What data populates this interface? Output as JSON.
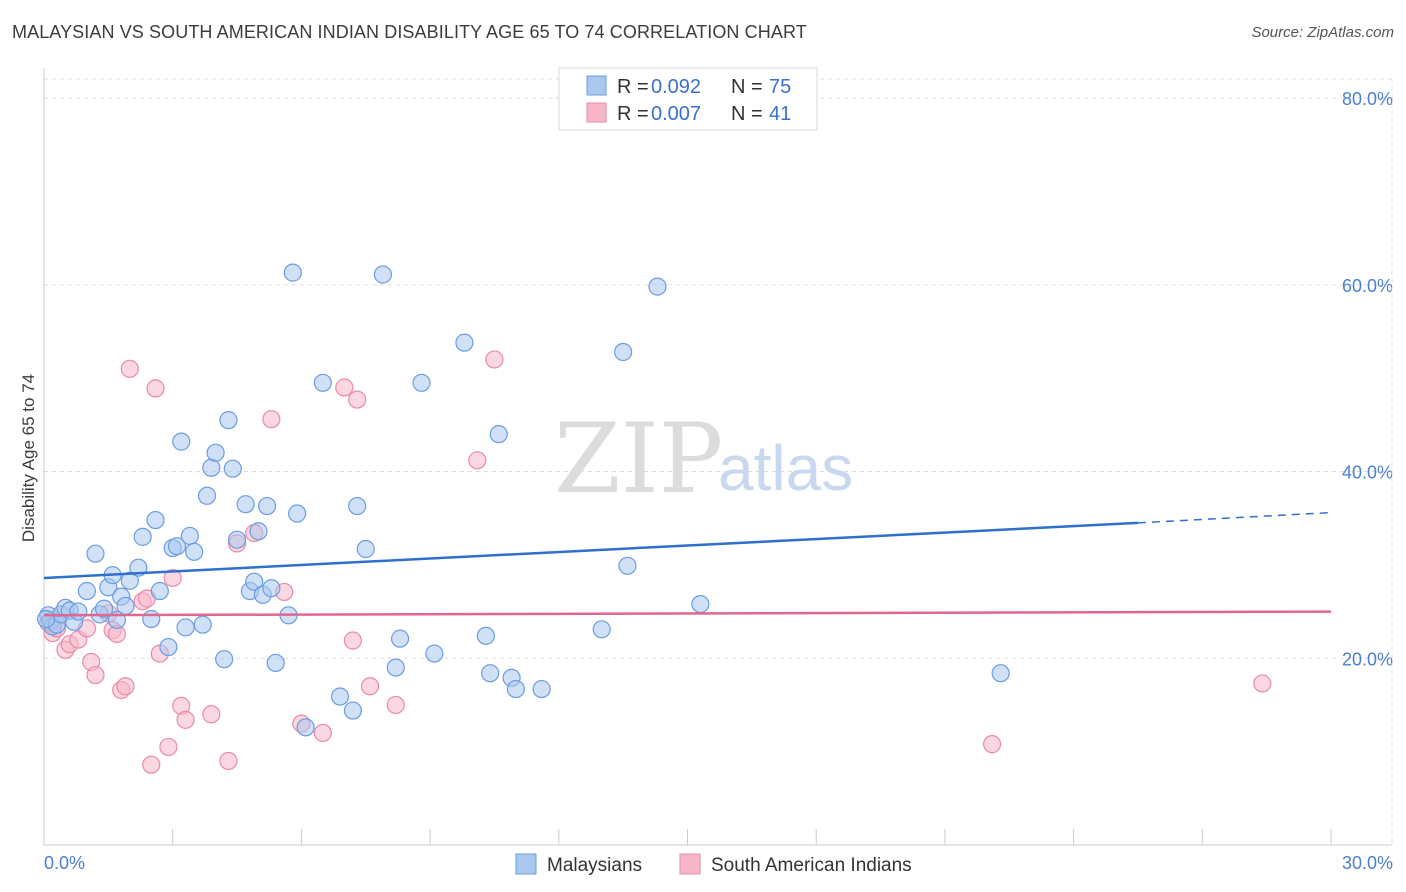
{
  "header": {
    "title": "MALAYSIAN VS SOUTH AMERICAN INDIAN DISABILITY AGE 65 TO 74 CORRELATION CHART",
    "source": "Source: ZipAtlas.com"
  },
  "watermark": {
    "zip": "ZIP",
    "atlas": "atlas"
  },
  "colors": {
    "blue_fill": "#a9c7ef",
    "blue_stroke": "#6a9de0",
    "blue_line": "#2f6fcd",
    "pink_fill": "#f7b6c8",
    "pink_stroke": "#ea8aa8",
    "pink_line": "#e0678f",
    "grid": "#dddddd",
    "axis_tick": "#4a7fd1"
  },
  "legend": {
    "rows": [
      {
        "r_label": "R =",
        "r_value": "0.092",
        "n_label": "N =",
        "n_value": "75"
      },
      {
        "r_label": "R =",
        "r_value": "0.007",
        "n_label": "N =",
        "n_value": "41"
      }
    ]
  },
  "chart_data": {
    "type": "scatter",
    "title": "MALAYSIAN VS SOUTH AMERICAN INDIAN DISABILITY AGE 65 TO 74 CORRELATION CHART",
    "xlabel": "",
    "ylabel": "Disability Age 65 to 74",
    "xlim": [
      0,
      30
    ],
    "ylim": [
      0,
      80
    ],
    "x_tick_labels": [
      "0.0%",
      "30.0%"
    ],
    "y_ticks": [
      20,
      40,
      60,
      80
    ],
    "y_tick_labels": [
      "20.0%",
      "40.0%",
      "60.0%",
      "80.0%"
    ],
    "grid": true,
    "series": [
      {
        "name": "Malaysians",
        "color": "#a9c7ef",
        "trend": {
          "x0": 0,
          "y0": 28.6,
          "x1": 25.5,
          "y1": 34.5,
          "dash_to_x": 30,
          "dash_to_y": 35.6
        },
        "points": [
          [
            0.1,
            24.6
          ],
          [
            0.15,
            24.0
          ],
          [
            0.2,
            23.4
          ],
          [
            0.3,
            23.6
          ],
          [
            0.4,
            24.7
          ],
          [
            0.5,
            25.4
          ],
          [
            0.6,
            25.1
          ],
          [
            0.7,
            23.9
          ],
          [
            0.8,
            25.0
          ],
          [
            1.0,
            27.2
          ],
          [
            1.2,
            31.2
          ],
          [
            1.3,
            24.7
          ],
          [
            1.4,
            25.3
          ],
          [
            1.5,
            27.6
          ],
          [
            1.6,
            28.9
          ],
          [
            1.7,
            24.1
          ],
          [
            1.8,
            26.6
          ],
          [
            1.9,
            25.6
          ],
          [
            2.0,
            28.3
          ],
          [
            2.2,
            29.7
          ],
          [
            2.3,
            33.0
          ],
          [
            2.5,
            24.2
          ],
          [
            2.6,
            34.8
          ],
          [
            2.7,
            27.2
          ],
          [
            2.9,
            21.2
          ],
          [
            3.0,
            31.8
          ],
          [
            3.1,
            32.0
          ],
          [
            3.2,
            43.2
          ],
          [
            3.3,
            23.3
          ],
          [
            3.4,
            33.1
          ],
          [
            3.5,
            31.4
          ],
          [
            3.7,
            23.6
          ],
          [
            3.8,
            37.4
          ],
          [
            3.9,
            40.4
          ],
          [
            4.0,
            42.0
          ],
          [
            4.2,
            19.9
          ],
          [
            4.3,
            45.5
          ],
          [
            4.4,
            40.3
          ],
          [
            4.5,
            32.7
          ],
          [
            4.7,
            36.5
          ],
          [
            4.8,
            27.2
          ],
          [
            4.9,
            28.2
          ],
          [
            5.0,
            33.6
          ],
          [
            5.1,
            26.8
          ],
          [
            5.2,
            36.3
          ],
          [
            5.3,
            27.5
          ],
          [
            5.4,
            19.5
          ],
          [
            5.7,
            24.6
          ],
          [
            5.8,
            61.3
          ],
          [
            5.9,
            35.5
          ],
          [
            6.1,
            12.6
          ],
          [
            6.5,
            49.5
          ],
          [
            6.9,
            15.9
          ],
          [
            7.2,
            14.4
          ],
          [
            7.3,
            36.3
          ],
          [
            7.5,
            31.7
          ],
          [
            7.9,
            61.1
          ],
          [
            8.2,
            19.0
          ],
          [
            8.3,
            22.1
          ],
          [
            8.8,
            49.5
          ],
          [
            9.1,
            20.5
          ],
          [
            9.8,
            53.8
          ],
          [
            10.3,
            22.4
          ],
          [
            10.4,
            18.4
          ],
          [
            10.6,
            44.0
          ],
          [
            10.9,
            17.9
          ],
          [
            11.0,
            16.7
          ],
          [
            11.6,
            16.7
          ],
          [
            13.0,
            23.1
          ],
          [
            13.5,
            52.8
          ],
          [
            13.6,
            29.9
          ],
          [
            14.3,
            59.8
          ],
          [
            15.3,
            25.8
          ],
          [
            22.3,
            18.4
          ],
          [
            0.05,
            24.2
          ]
        ]
      },
      {
        "name": "South American Indians",
        "color": "#f7b6c8",
        "trend": {
          "x0": 0,
          "y0": 24.6,
          "x1": 30,
          "y1": 25.0
        },
        "points": [
          [
            0.1,
            23.8
          ],
          [
            0.2,
            22.7
          ],
          [
            0.3,
            23.2
          ],
          [
            0.5,
            20.9
          ],
          [
            0.6,
            21.5
          ],
          [
            0.8,
            22.0
          ],
          [
            1.0,
            23.2
          ],
          [
            1.1,
            19.6
          ],
          [
            1.2,
            18.2
          ],
          [
            1.5,
            24.8
          ],
          [
            1.6,
            23.0
          ],
          [
            1.7,
            22.6
          ],
          [
            1.8,
            16.6
          ],
          [
            1.9,
            17.0
          ],
          [
            2.0,
            51.0
          ],
          [
            2.3,
            26.1
          ],
          [
            2.4,
            26.4
          ],
          [
            2.5,
            8.6
          ],
          [
            2.6,
            48.9
          ],
          [
            2.7,
            20.5
          ],
          [
            2.9,
            10.5
          ],
          [
            3.0,
            28.6
          ],
          [
            3.2,
            14.9
          ],
          [
            3.3,
            13.4
          ],
          [
            3.9,
            14.0
          ],
          [
            4.3,
            9.0
          ],
          [
            4.5,
            32.3
          ],
          [
            4.9,
            33.4
          ],
          [
            5.3,
            45.6
          ],
          [
            5.6,
            27.1
          ],
          [
            6.0,
            13.0
          ],
          [
            6.5,
            12.0
          ],
          [
            7.0,
            49.0
          ],
          [
            7.2,
            21.9
          ],
          [
            7.3,
            47.7
          ],
          [
            7.6,
            17.0
          ],
          [
            8.2,
            15.0
          ],
          [
            10.1,
            41.2
          ],
          [
            10.5,
            52.0
          ],
          [
            22.1,
            10.8
          ],
          [
            28.4,
            17.3
          ]
        ]
      }
    ]
  }
}
